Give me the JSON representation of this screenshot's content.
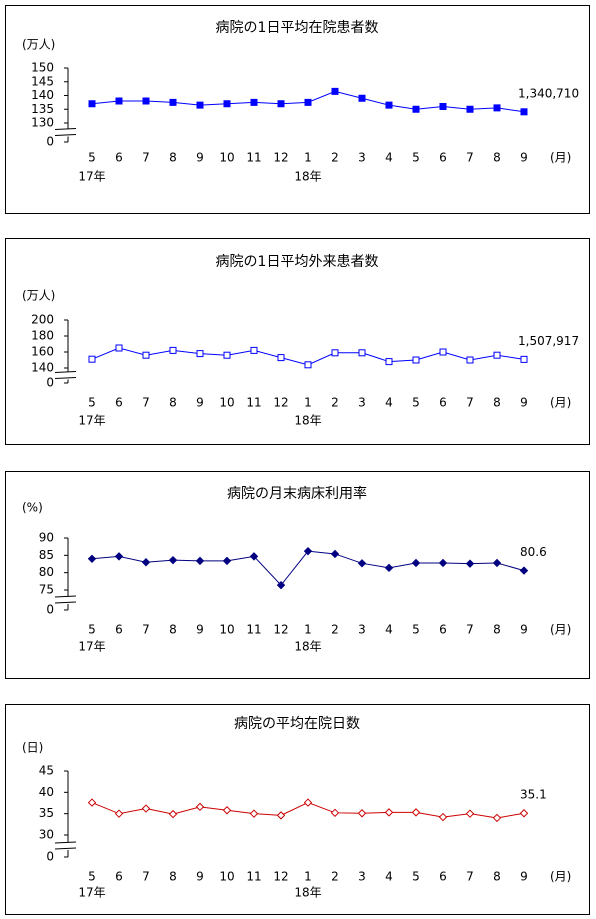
{
  "chart_data": [
    {
      "type": "line",
      "title": "病院の1日平均在院患者数",
      "y_label": "(万人)",
      "x_label": "(月)",
      "categories": [
        "5",
        "6",
        "7",
        "8",
        "9",
        "10",
        "11",
        "12",
        "1",
        "2",
        "3",
        "4",
        "5",
        "6",
        "7",
        "8",
        "9"
      ],
      "category_years": [
        "17年",
        null,
        null,
        null,
        null,
        null,
        null,
        null,
        "18年",
        null,
        null,
        null,
        null,
        null,
        null,
        null,
        null
      ],
      "values": [
        137,
        138,
        138,
        137.5,
        136.5,
        137,
        137.5,
        137,
        137.5,
        141.5,
        139,
        136.5,
        135,
        136,
        135,
        135.5,
        134.071
      ],
      "value_labels": [
        null,
        null,
        null,
        null,
        null,
        null,
        null,
        null,
        null,
        null,
        null,
        null,
        null,
        null,
        null,
        null,
        "1,340,710"
      ],
      "color": "#0000ff",
      "marker": "square",
      "marker_filled": true,
      "ylim": [
        0,
        150
      ],
      "axis_break": [
        0,
        130
      ],
      "yticks": [
        0,
        130,
        135,
        140,
        145,
        150
      ]
    },
    {
      "type": "line",
      "title": "病院の1日平均外来患者数",
      "y_label": "(万人)",
      "x_label": "(月)",
      "categories": [
        "5",
        "6",
        "7",
        "8",
        "9",
        "10",
        "11",
        "12",
        "1",
        "2",
        "3",
        "4",
        "5",
        "6",
        "7",
        "8",
        "9"
      ],
      "category_years": [
        "17年",
        null,
        null,
        null,
        null,
        null,
        null,
        null,
        "18年",
        null,
        null,
        null,
        null,
        null,
        null,
        null,
        null
      ],
      "values": [
        151,
        165,
        156,
        162,
        158,
        156,
        162,
        153,
        144,
        159,
        159,
        148,
        150,
        160,
        150,
        156,
        150.7917
      ],
      "value_labels": [
        null,
        null,
        null,
        null,
        null,
        null,
        null,
        null,
        null,
        null,
        null,
        null,
        null,
        null,
        null,
        null,
        "1,507,917"
      ],
      "color": "#0000ff",
      "marker": "square",
      "marker_filled": false,
      "ylim": [
        0,
        200
      ],
      "axis_break": [
        0,
        140
      ],
      "yticks": [
        0,
        140,
        160,
        180,
        200
      ]
    },
    {
      "type": "line",
      "title": "病院の月末病床利用率",
      "y_label": "(%)",
      "x_label": "(月)",
      "categories": [
        "5",
        "6",
        "7",
        "8",
        "9",
        "10",
        "11",
        "12",
        "1",
        "2",
        "3",
        "4",
        "5",
        "6",
        "7",
        "8",
        "9"
      ],
      "category_years": [
        "17年",
        null,
        null,
        null,
        null,
        null,
        null,
        null,
        "18年",
        null,
        null,
        null,
        null,
        null,
        null,
        null,
        null
      ],
      "values": [
        84,
        84.7,
        83,
        83.6,
        83.4,
        83.4,
        84.7,
        76.4,
        86.2,
        85.4,
        82.7,
        81.4,
        82.8,
        82.8,
        82.6,
        82.8,
        80.6
      ],
      "color": "#000080",
      "marker": "diamond",
      "marker_filled": true,
      "ylim": [
        0,
        90
      ],
      "axis_break": [
        0,
        75
      ],
      "yticks": [
        0,
        75,
        80,
        85,
        90
      ]
    },
    {
      "type": "line",
      "title": "病院の平均在院日数",
      "y_label": "(日)",
      "x_label": "(月)",
      "categories": [
        "5",
        "6",
        "7",
        "8",
        "9",
        "10",
        "11",
        "12",
        "1",
        "2",
        "3",
        "4",
        "5",
        "6",
        "7",
        "8",
        "9"
      ],
      "category_years": [
        "17年",
        null,
        null,
        null,
        null,
        null,
        null,
        null,
        "18年",
        null,
        null,
        null,
        null,
        null,
        null,
        null,
        null
      ],
      "values": [
        37.6,
        35,
        36.2,
        34.9,
        36.6,
        35.8,
        35,
        34.6,
        37.6,
        35.2,
        35.1,
        35.3,
        35.3,
        34.2,
        35,
        34,
        35.1
      ],
      "color": "#cc0000",
      "marker": "diamond",
      "marker_filled": false,
      "ylim": [
        0,
        45
      ],
      "axis_break": [
        0,
        30
      ],
      "yticks": [
        0,
        30,
        35,
        40,
        45
      ]
    }
  ]
}
